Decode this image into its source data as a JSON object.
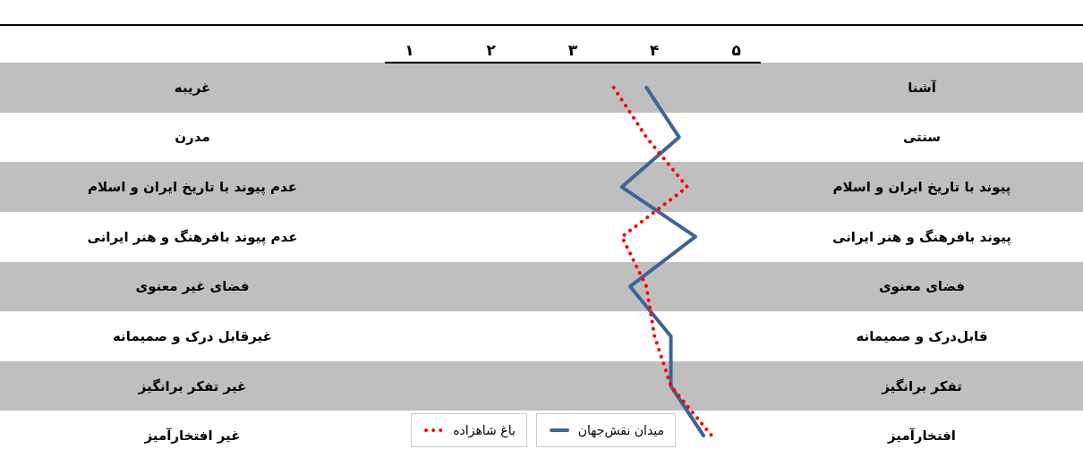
{
  "chart_data": {
    "type": "line",
    "orientation": "horizontal",
    "categories": [
      "غریبه",
      "مدرن",
      "عدم پیوند با تاریخ ایران و اسلام",
      "عدم پیوند بافرهنگ و هنر ایرانی",
      "فضای غیر معنوی",
      "غیرقابل درک و صمیمانه",
      "غیر تفکر برانگیز",
      "غیر افتخارآمیز"
    ],
    "y2_categories": [
      "آشنا",
      "سنتی",
      "پیوند با تاریخ ایران و اسلام",
      "پیوند بافرهنگ و هنر ایرانی",
      "فضای معنوی",
      "قابل‌درک و صمیمانه",
      "تفکر برانگیز",
      "افتخارآمیز"
    ],
    "series": [
      {
        "name": "میدان نقش‌جهان",
        "color": "#3d6596",
        "line_style": "solid",
        "values": [
          3.9,
          4.3,
          3.6,
          4.5,
          3.7,
          4.2,
          4.2,
          4.6
        ]
      },
      {
        "name": "باغ شاهزاده",
        "color": "#ff0000",
        "line_style": "dotted",
        "values": [
          3.5,
          3.9,
          4.4,
          3.6,
          3.9,
          4.0,
          4.2,
          4.7
        ]
      }
    ],
    "xlim": [
      0.7,
      5.3
    ],
    "xticks": [
      {
        "value": 1,
        "label": "١"
      },
      {
        "value": 2,
        "label": "٢"
      },
      {
        "value": 3,
        "label": "٣"
      },
      {
        "value": 4,
        "label": "۴"
      },
      {
        "value": 5,
        "label": "۵"
      }
    ],
    "bands": [
      {
        "axis": "y",
        "from": "غریبه",
        "to": "غریبه",
        "color": "#bfbfbf"
      },
      {
        "axis": "y",
        "from": "عدم پیوند با تاریخ ایران و اسلام",
        "to": "عدم پیوند با تاریخ ایران و اسلام",
        "color": "#bfbfbf"
      },
      {
        "axis": "y",
        "from": "فضای غیر معنوی",
        "to": "فضای غیر معنوی",
        "color": "#bfbfbf"
      },
      {
        "axis": "y",
        "from": "غیر تفکر برانگیز",
        "to": "غیر تفکر برانگیز",
        "color": "#bfbfbf"
      }
    ],
    "marker": "none",
    "legend": "bottom"
  }
}
